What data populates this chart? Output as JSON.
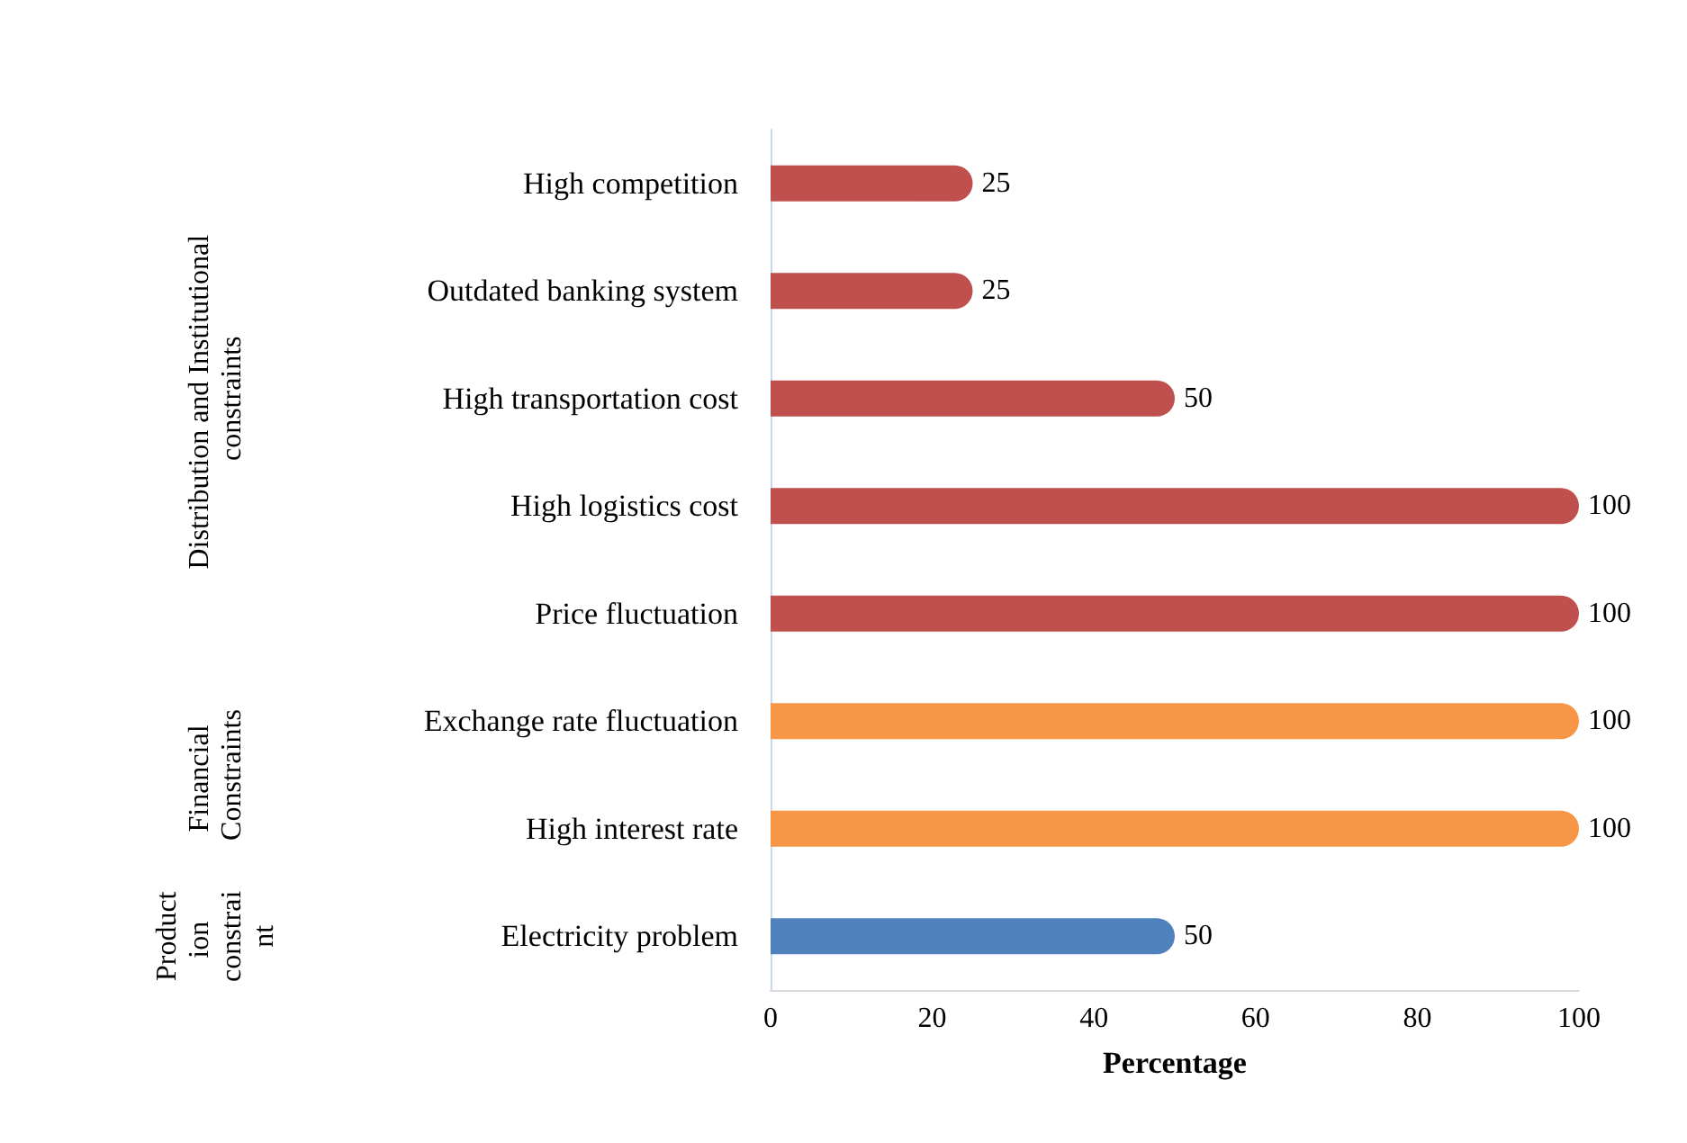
{
  "chart_data": {
    "type": "bar",
    "orientation": "horizontal",
    "xlabel": "Percentage",
    "categories": [
      "High competition",
      "Outdated banking system",
      "High transportation cost",
      "High logistics cost",
      "Price fluctuation",
      "Exchange rate fluctuation",
      "High interest rate",
      "Electricity problem"
    ],
    "series": [
      {
        "color": "#c0504d",
        "values": [
          25,
          25,
          50,
          100,
          100,
          null,
          null,
          null
        ]
      },
      {
        "color": "#f79646",
        "values": [
          null,
          null,
          null,
          null,
          null,
          100,
          100,
          null
        ]
      },
      {
        "color": "#4f81bd",
        "values": [
          null,
          null,
          null,
          null,
          null,
          null,
          null,
          50
        ]
      }
    ],
    "annotations": [
      "Distribution and Institutional constraints",
      "Financial Constraints",
      "Production constraint"
    ],
    "xlim": [
      0,
      100
    ],
    "xticks": [
      0,
      20,
      40,
      60,
      80,
      100
    ],
    "data_labels": true
  }
}
